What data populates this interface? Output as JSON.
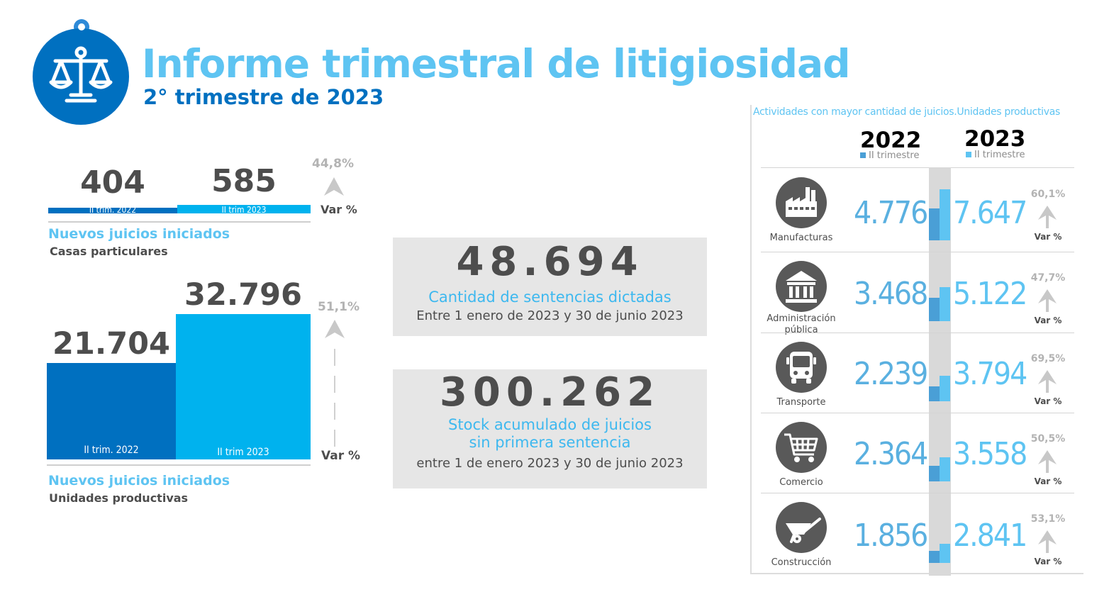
{
  "header": {
    "title": "Informe trimestral de litigiosidad",
    "subtitle": "2° trimestre de 2023",
    "logo_icon": "scales-of-justice-icon"
  },
  "colors": {
    "dark_blue": "#0070c0",
    "light_blue": "#00b2ee",
    "accent_text": "#5ec4f2",
    "grey_box": "#e6e6e6",
    "text_dark": "#4d4d4d"
  },
  "casas": {
    "caption": "Nuevos juicios iniciados",
    "subcaption": "Casas particulares",
    "value_2022": "404",
    "value_2023": "585",
    "label_2022": "II trim. 2022",
    "label_2023": "II trim 2023",
    "pct": "44,8%",
    "var_label": "Var %"
  },
  "unidades": {
    "caption": "Nuevos juicios iniciados",
    "subcaption": "Unidades productivas",
    "value_2022": "21.704",
    "value_2023": "32.796",
    "label_2022": "II trim. 2022",
    "label_2023": "II trim 2023",
    "pct": "51,1%",
    "var_label": "Var %"
  },
  "sentencias": {
    "value": "48.694",
    "caption": "Cantidad de sentencias dictadas",
    "sub": "Entre 1 enero de 2023 y 30 de junio 2023"
  },
  "stock": {
    "value": "300.262",
    "caption_line1": "Stock acumulado de juicios",
    "caption_line2": "sin primera sentencia",
    "sub": "entre 1 de enero 2023 y 30 de junio 2023"
  },
  "actividades": {
    "title": "Actividades con mayor cantidad de juicios.Unidades productivas",
    "year_2022": "2022",
    "year_2023": "2023",
    "trim_2022": "II trimestre",
    "trim_2023": "II trimestre",
    "var_label": "Var %"
  },
  "chart_data": [
    {
      "type": "bar",
      "subtitle": "Casas particulares",
      "categories": [
        "II trim. 2022",
        "II trim 2023"
      ],
      "values": [
        404,
        585
      ],
      "annotations": [
        "44,8%",
        "Var %"
      ]
    },
    {
      "type": "bar",
      "subtitle": "Unidades productivas",
      "categories": [
        "II trim. 2022",
        "II trim 2023"
      ],
      "values": [
        21704,
        32796
      ],
      "annotations": [
        "51,1%",
        "Var %"
      ]
    },
    {
      "type": "bar",
      "categories": [
        "Manufacturas",
        "Administración pública",
        "Transporte",
        "Comercio",
        "Construcción"
      ],
      "series": [
        {
          "name": "2022",
          "values": [
            4776,
            3468,
            2239,
            2364,
            1856
          ],
          "labels": [
            "4.776",
            "3.468",
            "2.239",
            "2.364",
            "1.856"
          ]
        },
        {
          "name": "2023",
          "values": [
            7647,
            5122,
            3794,
            3558,
            2841
          ],
          "labels": [
            "7.647",
            "5.122",
            "3.794",
            "3.558",
            "2.841"
          ]
        }
      ],
      "variation": [
        "60,1%",
        "47,7%",
        "69,5%",
        "50,5%",
        "53,1%"
      ],
      "rows": [
        {
          "name_line1": "Manufacturas",
          "name_line2": "",
          "icon": "factory-icon",
          "v2022": "4.776",
          "v2023": "7.647",
          "pct": "60,1%"
        },
        {
          "name_line1": "Administración",
          "name_line2": "pública",
          "icon": "government-building-icon",
          "v2022": "3.468",
          "v2023": "5.122",
          "pct": "47,7%"
        },
        {
          "name_line1": "Transporte",
          "name_line2": "",
          "icon": "bus-icon",
          "v2022": "2.239",
          "v2023": "3.794",
          "pct": "69,5%"
        },
        {
          "name_line1": "Comercio",
          "name_line2": "",
          "icon": "shopping-cart-icon",
          "v2022": "2.364",
          "v2023": "3.558",
          "pct": "50,5%"
        },
        {
          "name_line1": "Construcción",
          "name_line2": "",
          "icon": "wheelbarrow-icon",
          "v2022": "1.856",
          "v2023": "2.841",
          "pct": "53,1%"
        }
      ]
    }
  ]
}
